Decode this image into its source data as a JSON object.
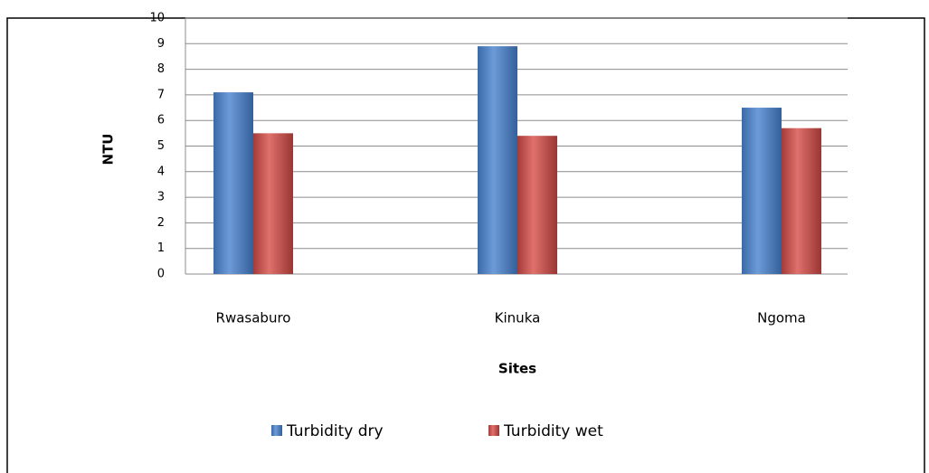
{
  "chart_data": {
    "type": "bar",
    "categories": [
      "Rwasaburo",
      "Kinuka",
      "Ngoma"
    ],
    "series": [
      {
        "name": "Turbidity dry",
        "color": "#4f81bd",
        "values": [
          7.1,
          8.9,
          6.5
        ]
      },
      {
        "name": "Turbidity wet",
        "color": "#c0504d",
        "values": [
          5.5,
          5.4,
          5.7
        ]
      }
    ],
    "ylim": [
      0,
      10
    ],
    "yticks": [
      0,
      1,
      2,
      3,
      4,
      5,
      6,
      7,
      8,
      9,
      10
    ],
    "grid": true,
    "ylabel": "NTU",
    "xlabel": "Sites",
    "legend": "bottom"
  }
}
